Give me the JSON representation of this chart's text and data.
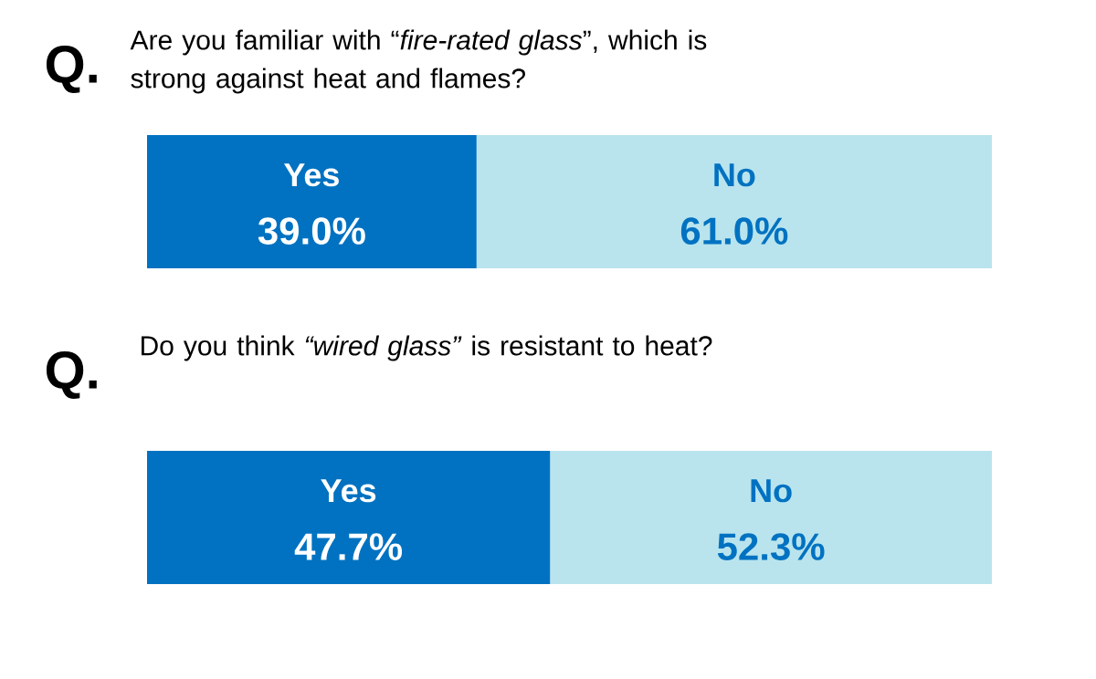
{
  "chart_data": [
    {
      "type": "bar",
      "orientation": "horizontal",
      "stacked": true,
      "title": "Q.",
      "subtitle": "Are you familiar with “*fire-rated glass*”, which is strong against heat and flames?",
      "categories": [
        null
      ],
      "tick_labels": false,
      "series": [
        {
          "name": "Yes",
          "color": "#0072c1",
          "values": [
            39.0
          ],
          "value_labels": [
            "39.0%"
          ]
        },
        {
          "name": "No",
          "color": "#b9e4ee",
          "values": [
            61.0
          ],
          "value_labels": [
            "61.0%"
          ]
        }
      ]
    },
    {
      "type": "bar",
      "orientation": "horizontal",
      "stacked": true,
      "title": "Q.",
      "subtitle": "Do you think *“wired glass”* is resistant to heat?",
      "categories": [
        null
      ],
      "tick_labels": false,
      "series": [
        {
          "name": "Yes",
          "color": "#0072c1",
          "values": [
            47.7
          ],
          "value_labels": [
            "47.7%"
          ]
        },
        {
          "name": "No",
          "color": "#b9e4ee",
          "values": [
            52.3
          ],
          "value_labels": [
            "52.3%"
          ]
        }
      ]
    }
  ]
}
